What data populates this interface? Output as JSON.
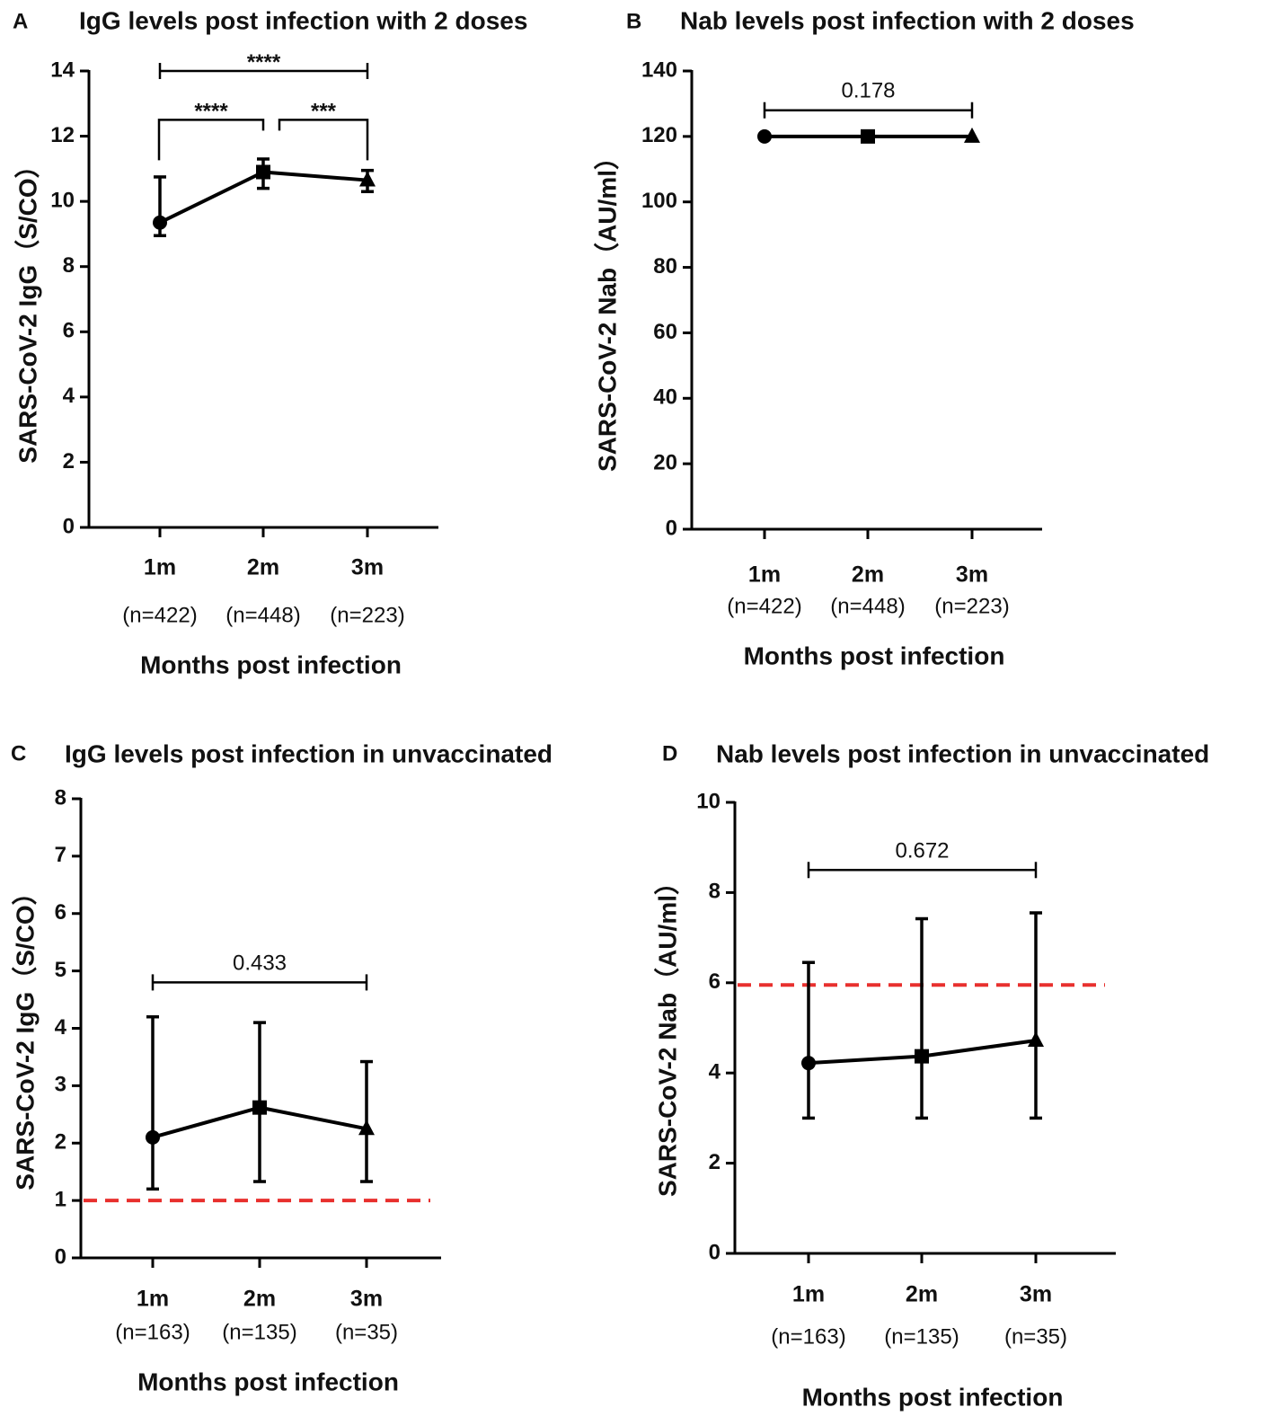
{
  "chart_data": [
    {
      "id": "A",
      "panel_letter": "A",
      "type": "line",
      "title": "IgG levels post infection with 2 doses",
      "ylabel": "SARS-CoV-2 IgG（S/CO）",
      "xlabel": "Months post infection",
      "ylim": [
        0,
        14
      ],
      "yticks": [
        0,
        2,
        4,
        6,
        8,
        10,
        12,
        14
      ],
      "categories": [
        "1m",
        "2m",
        "3m"
      ],
      "n_labels": [
        "(n=422)",
        "(n=448)",
        "(n=223)"
      ],
      "markers": [
        "circle",
        "square",
        "triangle"
      ],
      "values": [
        9.35,
        10.9,
        10.65
      ],
      "err_low": [
        8.95,
        10.4,
        10.3
      ],
      "err_high": [
        10.75,
        11.3,
        10.95
      ],
      "threshold": null,
      "comparisons": [
        {
          "from": 0,
          "to": 2,
          "label": "****",
          "y": 14.0,
          "drop": 0
        },
        {
          "from": 0,
          "to": 1,
          "label": "****",
          "y": 12.5,
          "drop": 1
        },
        {
          "from": 1,
          "to": 2,
          "label": "***",
          "y": 12.5,
          "drop": 1
        }
      ]
    },
    {
      "id": "B",
      "panel_letter": "B",
      "type": "line",
      "title": "Nab levels post infection with 2 doses",
      "ylabel": "SARS-CoV-2 Nab（AU/ml）",
      "xlabel": "Months post infection",
      "ylim": [
        0,
        140
      ],
      "yticks": [
        0,
        20,
        40,
        60,
        80,
        100,
        120,
        140
      ],
      "categories": [
        "1m",
        "2m",
        "3m"
      ],
      "n_labels": [
        "(n=422)",
        "(n=448)",
        "(n=223)"
      ],
      "markers": [
        "circle",
        "square",
        "triangle"
      ],
      "values": [
        120,
        120,
        120
      ],
      "err_low": [
        120,
        120,
        120
      ],
      "err_high": [
        120,
        120,
        120
      ],
      "threshold": null,
      "comparisons": [
        {
          "from": 0,
          "to": 2,
          "label": "0.178",
          "y": 128,
          "drop": 0
        }
      ]
    },
    {
      "id": "C",
      "panel_letter": "C",
      "type": "line",
      "title": "IgG levels post infection in unvaccinated",
      "ylabel": "SARS-CoV-2 IgG（S/CO）",
      "xlabel": "Months post infection",
      "ylim": [
        0,
        8
      ],
      "yticks": [
        0,
        1,
        2,
        3,
        4,
        5,
        6,
        7,
        8
      ],
      "categories": [
        "1m",
        "2m",
        "3m"
      ],
      "n_labels": [
        "(n=163)",
        "(n=135)",
        "(n=35)"
      ],
      "markers": [
        "circle",
        "square",
        "triangle"
      ],
      "values": [
        2.1,
        2.62,
        2.25
      ],
      "err_low": [
        1.2,
        1.33,
        1.33
      ],
      "err_high": [
        4.2,
        4.1,
        3.42
      ],
      "threshold": 1,
      "threshold_color": "#e8302e",
      "comparisons": [
        {
          "from": 0,
          "to": 2,
          "label": "0.433",
          "y": 4.8,
          "drop": 0
        }
      ]
    },
    {
      "id": "D",
      "panel_letter": "D",
      "type": "line",
      "title": "Nab levels post infection in unvaccinated",
      "ylabel": "SARS-CoV-2 Nab（AU/ml）",
      "xlabel": "Months post infection",
      "ylim": [
        0,
        10
      ],
      "yticks": [
        0,
        2,
        4,
        6,
        8,
        10
      ],
      "categories": [
        "1m",
        "2m",
        "3m"
      ],
      "n_labels": [
        "(n=163)",
        "(n=135)",
        "(n=35)"
      ],
      "markers": [
        "circle",
        "square",
        "triangle"
      ],
      "values": [
        4.22,
        4.37,
        4.72
      ],
      "err_low": [
        3.0,
        3.0,
        3.0
      ],
      "err_high": [
        6.45,
        7.42,
        7.55
      ],
      "threshold": 5.95,
      "threshold_color": "#e8302e",
      "comparisons": [
        {
          "from": 0,
          "to": 2,
          "label": "0.672",
          "y": 8.5,
          "drop": 0
        }
      ]
    }
  ]
}
